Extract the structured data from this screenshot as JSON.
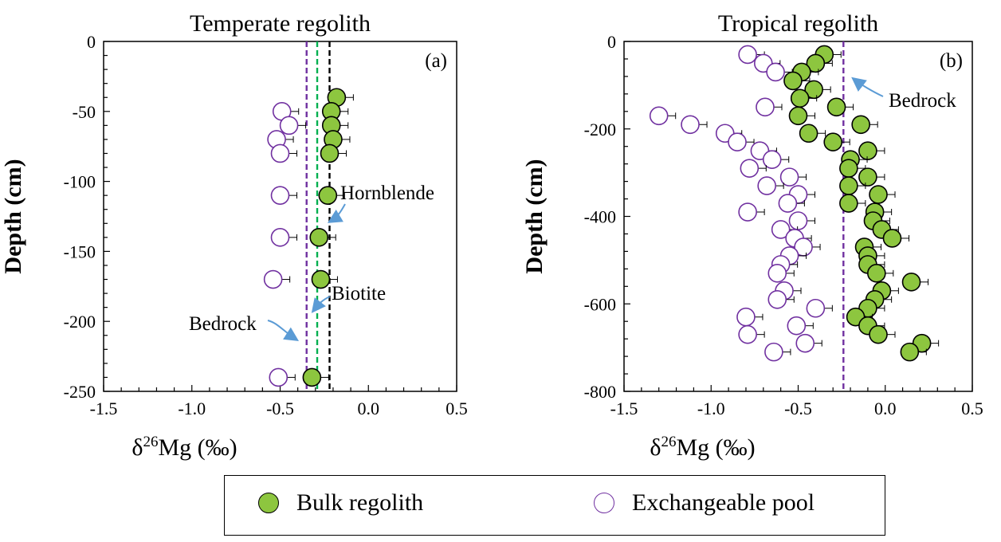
{
  "colors": {
    "bulk_fill": "#8dc63f",
    "bulk_stroke": "#000000",
    "exch_stroke": "#7030a0",
    "bedrock_line": "#7030a0",
    "biotite_line": "#00b050",
    "hornblende_line": "#000000",
    "arrow": "#5b9bd5"
  },
  "legend": {
    "bulk_label": "Bulk regolith",
    "exch_label": "Exchangeable pool"
  },
  "chart_data": [
    {
      "type": "scatter",
      "title": "Temperate regolith",
      "panel_label": "(a)",
      "xlabel_prefix": "δ",
      "xlabel_sup": "26",
      "xlabel_suffix": "Mg (‰)",
      "ylabel": "Depth (cm)",
      "xlim": [
        -1.5,
        0.5
      ],
      "ylim": [
        -250,
        0
      ],
      "xticks": [
        -1.5,
        -1.0,
        -0.5,
        0.0,
        0.5
      ],
      "xtick_labels": [
        "-1.5",
        "-1.0",
        "-0.5",
        "0.0",
        "0.5"
      ],
      "yticks": [
        0,
        -50,
        -100,
        -150,
        -200,
        -250
      ],
      "ytick_labels": [
        "0",
        "-50",
        "-100",
        "-150",
        "-200",
        "-250"
      ],
      "reference_lines": [
        {
          "name": "Bedrock",
          "x": -0.35,
          "color": "#7030a0"
        },
        {
          "name": "Biotite",
          "x": -0.29,
          "color": "#00b050"
        },
        {
          "name": "Hornblende",
          "x": -0.22,
          "color": "#000000"
        }
      ],
      "annotations": [
        "Hornblende",
        "Biotite",
        "Bedrock"
      ],
      "series": [
        {
          "name": "Bulk regolith",
          "points": [
            {
              "x": -0.18,
              "y": -40
            },
            {
              "x": -0.21,
              "y": -50
            },
            {
              "x": -0.21,
              "y": -60
            },
            {
              "x": -0.2,
              "y": -70
            },
            {
              "x": -0.22,
              "y": -80
            },
            {
              "x": -0.23,
              "y": -110
            },
            {
              "x": -0.28,
              "y": -140
            },
            {
              "x": -0.27,
              "y": -170
            },
            {
              "x": -0.32,
              "y": -240
            }
          ]
        },
        {
          "name": "Exchangeable pool",
          "points": [
            {
              "x": -0.49,
              "y": -50
            },
            {
              "x": -0.45,
              "y": -60
            },
            {
              "x": -0.52,
              "y": -70
            },
            {
              "x": -0.5,
              "y": -80
            },
            {
              "x": -0.5,
              "y": -110
            },
            {
              "x": -0.5,
              "y": -140
            },
            {
              "x": -0.54,
              "y": -170
            },
            {
              "x": -0.51,
              "y": -240
            }
          ]
        }
      ]
    },
    {
      "type": "scatter",
      "title": "Tropical regolith",
      "panel_label": "(b)",
      "xlabel_prefix": "δ",
      "xlabel_sup": "26",
      "xlabel_suffix": "Mg (‰)",
      "ylabel": "Depth (cm)",
      "xlim": [
        -1.5,
        0.5
      ],
      "ylim": [
        -800,
        0
      ],
      "xticks": [
        -1.5,
        -1.0,
        -0.5,
        0.0,
        0.5
      ],
      "xtick_labels": [
        "-1.5",
        "-1.0",
        "-0.5",
        "0.0",
        "0.5"
      ],
      "yticks": [
        0,
        -200,
        -400,
        -600,
        -800
      ],
      "ytick_labels": [
        "0",
        "-200",
        "-400",
        "-600",
        "-800"
      ],
      "reference_lines": [
        {
          "name": "Bedrock",
          "x": -0.24,
          "color": "#7030a0"
        }
      ],
      "annotations": [
        "Bedrock"
      ],
      "series": [
        {
          "name": "Bulk regolith",
          "points": [
            {
              "x": -0.35,
              "y": -30
            },
            {
              "x": -0.4,
              "y": -50
            },
            {
              "x": -0.48,
              "y": -70
            },
            {
              "x": -0.53,
              "y": -90
            },
            {
              "x": -0.41,
              "y": -110
            },
            {
              "x": -0.49,
              "y": -130
            },
            {
              "x": -0.28,
              "y": -150
            },
            {
              "x": -0.5,
              "y": -170
            },
            {
              "x": -0.14,
              "y": -190
            },
            {
              "x": -0.44,
              "y": -210
            },
            {
              "x": -0.3,
              "y": -230
            },
            {
              "x": -0.1,
              "y": -250
            },
            {
              "x": -0.2,
              "y": -270
            },
            {
              "x": -0.21,
              "y": -290
            },
            {
              "x": -0.1,
              "y": -310
            },
            {
              "x": -0.21,
              "y": -330
            },
            {
              "x": -0.04,
              "y": -350
            },
            {
              "x": -0.21,
              "y": -370
            },
            {
              "x": -0.06,
              "y": -390
            },
            {
              "x": -0.07,
              "y": -410
            },
            {
              "x": -0.02,
              "y": -430
            },
            {
              "x": 0.04,
              "y": -450
            },
            {
              "x": -0.12,
              "y": -470
            },
            {
              "x": -0.1,
              "y": -490
            },
            {
              "x": -0.1,
              "y": -510
            },
            {
              "x": -0.05,
              "y": -530
            },
            {
              "x": 0.15,
              "y": -550
            },
            {
              "x": -0.02,
              "y": -570
            },
            {
              "x": -0.06,
              "y": -590
            },
            {
              "x": -0.1,
              "y": -610
            },
            {
              "x": -0.17,
              "y": -630
            },
            {
              "x": -0.1,
              "y": -650
            },
            {
              "x": -0.04,
              "y": -670
            },
            {
              "x": 0.21,
              "y": -690
            },
            {
              "x": 0.14,
              "y": -710
            }
          ]
        },
        {
          "name": "Exchangeable pool",
          "points": [
            {
              "x": -0.79,
              "y": -30
            },
            {
              "x": -0.7,
              "y": -50
            },
            {
              "x": -0.63,
              "y": -70
            },
            {
              "x": -0.69,
              "y": -150
            },
            {
              "x": -1.3,
              "y": -170
            },
            {
              "x": -1.12,
              "y": -190
            },
            {
              "x": -0.92,
              "y": -210
            },
            {
              "x": -0.85,
              "y": -230
            },
            {
              "x": -0.72,
              "y": -250
            },
            {
              "x": -0.65,
              "y": -270
            },
            {
              "x": -0.78,
              "y": -290
            },
            {
              "x": -0.55,
              "y": -310
            },
            {
              "x": -0.68,
              "y": -330
            },
            {
              "x": -0.5,
              "y": -350
            },
            {
              "x": -0.56,
              "y": -370
            },
            {
              "x": -0.79,
              "y": -390
            },
            {
              "x": -0.5,
              "y": -410
            },
            {
              "x": -0.6,
              "y": -430
            },
            {
              "x": -0.52,
              "y": -450
            },
            {
              "x": -0.47,
              "y": -470
            },
            {
              "x": -0.55,
              "y": -490
            },
            {
              "x": -0.6,
              "y": -510
            },
            {
              "x": -0.62,
              "y": -530
            },
            {
              "x": -0.58,
              "y": -570
            },
            {
              "x": -0.62,
              "y": -590
            },
            {
              "x": -0.4,
              "y": -610
            },
            {
              "x": -0.8,
              "y": -630
            },
            {
              "x": -0.51,
              "y": -650
            },
            {
              "x": -0.79,
              "y": -670
            },
            {
              "x": -0.46,
              "y": -690
            },
            {
              "x": -0.64,
              "y": -710
            }
          ]
        }
      ]
    }
  ]
}
